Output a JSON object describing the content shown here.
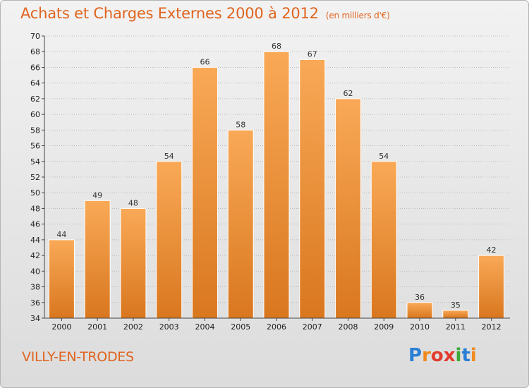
{
  "header": {
    "title": "Achats et Charges Externes 2000 à 2012",
    "subtitle": "(en milliers d'€)"
  },
  "footer": {
    "commune": "VILLY-EN-TRODES",
    "logo": {
      "letters": [
        "P",
        "r",
        "o",
        "x",
        "i",
        "t",
        "i"
      ],
      "colors": [
        "#2a7fd5",
        "#f08a1c",
        "#e23c2d",
        "#e23c2d",
        "#3aa935",
        "#2a7fd5",
        "#f08a1c"
      ]
    }
  },
  "colors": {
    "bar_top": "#f9a957",
    "bar_bottom": "#d9771f",
    "bar_stroke": "#ffffff",
    "axis": "#444444",
    "grid": "#bbbbbb"
  },
  "chart_data": {
    "type": "bar",
    "categories": [
      "2000",
      "2001",
      "2002",
      "2003",
      "2004",
      "2005",
      "2006",
      "2007",
      "2008",
      "2009",
      "2010",
      "2011",
      "2012"
    ],
    "values": [
      44,
      49,
      48,
      54,
      66,
      58,
      68,
      67,
      62,
      54,
      36,
      35,
      42
    ],
    "ylim": [
      34,
      70
    ],
    "yticks": [
      34,
      36,
      38,
      40,
      42,
      44,
      46,
      48,
      50,
      52,
      54,
      56,
      58,
      60,
      62,
      64,
      66,
      68,
      70
    ],
    "grid": true,
    "data_labels": true
  }
}
